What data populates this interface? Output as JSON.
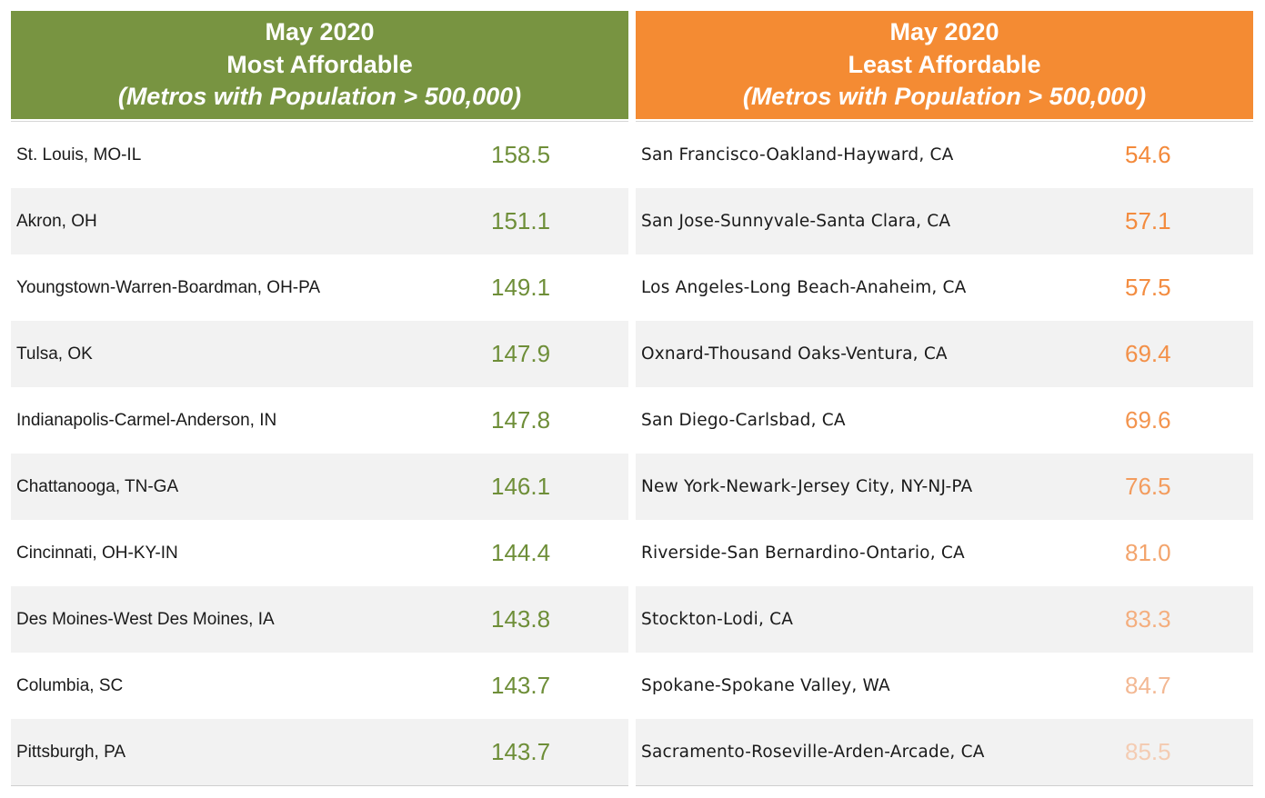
{
  "most_affordable": {
    "title_line1": "May 2020",
    "title_line2": "Most Affordable",
    "title_line3": "(Metros with Population > 500,000)",
    "header_color": "#789441",
    "value_color": "#6e8e38",
    "rows": [
      {
        "metro": "St. Louis, MO-IL",
        "value": "158.5"
      },
      {
        "metro": "Akron, OH",
        "value": "151.1"
      },
      {
        "metro": "Youngstown-Warren-Boardman, OH-PA",
        "value": "149.1"
      },
      {
        "metro": "Tulsa, OK",
        "value": "147.9"
      },
      {
        "metro": "Indianapolis-Carmel-Anderson, IN",
        "value": "147.8"
      },
      {
        "metro": "Chattanooga, TN-GA",
        "value": "146.1"
      },
      {
        "metro": "Cincinnati, OH-KY-IN",
        "value": "144.4"
      },
      {
        "metro": "Des Moines-West Des Moines, IA",
        "value": "143.8"
      },
      {
        "metro": "Columbia, SC",
        "value": "143.7"
      },
      {
        "metro": "Pittsburgh, PA",
        "value": "143.7"
      }
    ]
  },
  "least_affordable": {
    "title_line1": "May 2020",
    "title_line2": "Least Affordable",
    "title_line3": "(Metros with Population > 500,000)",
    "header_color": "#f48b33",
    "value_colors": [
      "#f3893a",
      "#f38b3e",
      "#f38c40",
      "#f39048",
      "#f3944e",
      "#f39c5e",
      "#f3a46c",
      "#f4ae7e",
      "#f3b893",
      "#f4ccb3"
    ],
    "rows": [
      {
        "metro": "San Francisco-Oakland-Hayward, CA",
        "value": "54.6"
      },
      {
        "metro": "San Jose-Sunnyvale-Santa Clara, CA",
        "value": "57.1"
      },
      {
        "metro": "Los Angeles-Long Beach-Anaheim, CA",
        "value": "57.5"
      },
      {
        "metro": "Oxnard-Thousand Oaks-Ventura, CA",
        "value": "69.4"
      },
      {
        "metro": "San Diego-Carlsbad, CA",
        "value": "69.6"
      },
      {
        "metro": "New York-Newark-Jersey City, NY-NJ-PA",
        "value": "76.5"
      },
      {
        "metro": "Riverside-San Bernardino-Ontario, CA",
        "value": "81.0"
      },
      {
        "metro": "Stockton-Lodi, CA",
        "value": "83.3"
      },
      {
        "metro": "Spokane-Spokane Valley, WA",
        "value": "84.7"
      },
      {
        "metro": "Sacramento-Roseville-Arden-Arcade, CA",
        "value": "85.5"
      }
    ]
  }
}
